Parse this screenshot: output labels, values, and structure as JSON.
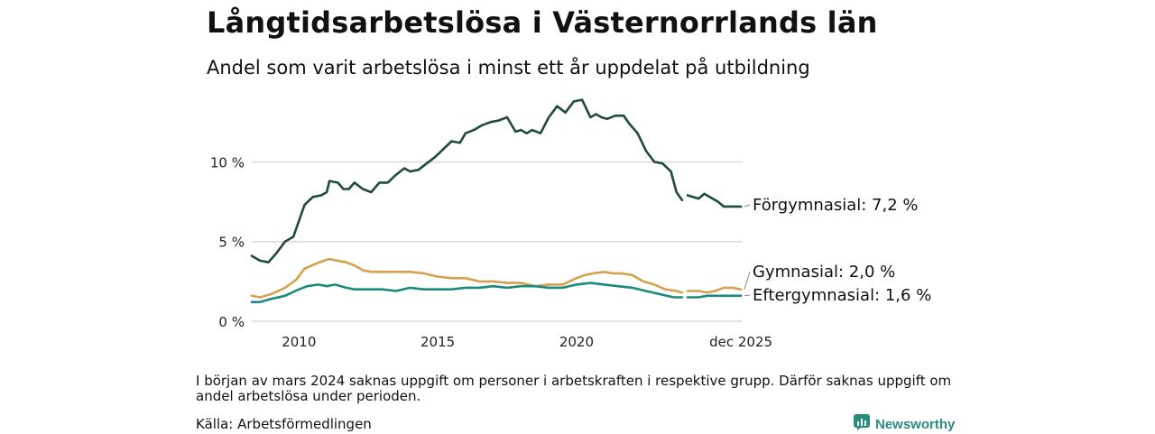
{
  "title": "Långtidsarbetslösa i Västernorrlands län",
  "subtitle": "Andel som varit arbetslösa i minst ett år uppdelat på utbildning",
  "note": "I början av mars 2024 saknas uppgift om personer i arbetskraften i respektive grupp. Därför saknas uppgift om andel arbetslösa under perioden.",
  "source": "Källa: Arbetsförmedlingen",
  "brand": "Newsworthy",
  "colors": {
    "forgymnasial": "#1f4a40",
    "gymnasial": "#d4a14f",
    "eftergymnasial": "#1a8a7e",
    "grid": "#d9d9d9"
  },
  "chart_data": {
    "type": "line",
    "title": "Långtidsarbetslösa i Västernorrlands län",
    "xlabel": "",
    "ylabel": "",
    "xlim": [
      2008.3,
      2025.95
    ],
    "ylim": [
      0,
      14.5
    ],
    "yticks": [
      0,
      5,
      10
    ],
    "ytick_labels": [
      "0 %",
      "5 %",
      "10 %"
    ],
    "xticks": [
      2010,
      2015,
      2020,
      2025.92
    ],
    "xtick_labels": [
      "2010",
      "2015",
      "2020",
      "dec 2025"
    ],
    "gap": [
      2024.0,
      2024.4
    ],
    "series": [
      {
        "name": "Förgymnasial",
        "label": "Förgymnasial: 7,2 %",
        "color": "#1f4a40",
        "x": [
          2008.3,
          2008.6,
          2008.9,
          2009.2,
          2009.5,
          2009.8,
          2010.0,
          2010.2,
          2010.5,
          2010.8,
          2011.0,
          2011.1,
          2011.4,
          2011.6,
          2011.8,
          2012.0,
          2012.3,
          2012.6,
          2012.9,
          2013.2,
          2013.5,
          2013.8,
          2014.0,
          2014.3,
          2014.6,
          2014.9,
          2015.2,
          2015.5,
          2015.8,
          2016.0,
          2016.3,
          2016.6,
          2016.9,
          2017.2,
          2017.5,
          2017.8,
          2018.0,
          2018.2,
          2018.4,
          2018.7,
          2019.0,
          2019.3,
          2019.6,
          2019.9,
          2020.2,
          2020.5,
          2020.7,
          2020.9,
          2021.1,
          2021.4,
          2021.7,
          2021.9,
          2022.2,
          2022.5,
          2022.8,
          2023.1,
          2023.4,
          2023.6,
          2023.8,
          2024.0,
          2024.4,
          2024.6,
          2024.9,
          2025.1,
          2025.3,
          2025.5,
          2025.7,
          2025.92
        ],
        "values": [
          4.1,
          3.8,
          3.7,
          4.3,
          5.0,
          5.3,
          6.3,
          7.3,
          7.8,
          7.9,
          8.1,
          8.8,
          8.7,
          8.3,
          8.3,
          8.7,
          8.3,
          8.1,
          8.7,
          8.7,
          9.2,
          9.6,
          9.4,
          9.5,
          9.9,
          10.3,
          10.8,
          11.3,
          11.2,
          11.8,
          12.0,
          12.3,
          12.5,
          12.6,
          12.8,
          11.9,
          12.0,
          11.8,
          12.0,
          11.8,
          12.8,
          13.5,
          13.1,
          13.8,
          13.9,
          12.8,
          13.0,
          12.8,
          12.7,
          12.9,
          12.9,
          12.4,
          11.8,
          10.7,
          10.0,
          9.9,
          9.4,
          8.1,
          7.6,
          7.9,
          7.7,
          8.0,
          7.7,
          7.5,
          7.2,
          7.2,
          7.2,
          7.2
        ],
        "segment_break_after": 2023.8
      },
      {
        "name": "Gymnasial",
        "label": "Gymnasial: 2,0 %",
        "color": "#d4a14f",
        "x": [
          2008.3,
          2008.6,
          2009.0,
          2009.5,
          2009.9,
          2010.2,
          2010.6,
          2010.9,
          2011.1,
          2011.4,
          2011.7,
          2012.0,
          2012.3,
          2012.6,
          2013.0,
          2013.5,
          2014.0,
          2014.5,
          2015.0,
          2015.5,
          2016.0,
          2016.5,
          2017.0,
          2017.5,
          2018.0,
          2018.5,
          2019.0,
          2019.5,
          2020.0,
          2020.3,
          2020.6,
          2021.0,
          2021.3,
          2021.6,
          2022.0,
          2022.4,
          2022.8,
          2023.2,
          2023.6,
          2023.8,
          2024.0,
          2024.4,
          2024.7,
          2025.0,
          2025.3,
          2025.6,
          2025.92
        ],
        "values": [
          1.6,
          1.5,
          1.7,
          2.1,
          2.6,
          3.3,
          3.6,
          3.8,
          3.9,
          3.8,
          3.7,
          3.5,
          3.2,
          3.1,
          3.1,
          3.1,
          3.1,
          3.0,
          2.8,
          2.7,
          2.7,
          2.5,
          2.5,
          2.4,
          2.4,
          2.2,
          2.3,
          2.3,
          2.7,
          2.9,
          3.0,
          3.1,
          3.0,
          3.0,
          2.9,
          2.5,
          2.3,
          2.0,
          1.9,
          1.8,
          1.9,
          1.9,
          1.8,
          1.9,
          2.1,
          2.1,
          2.0
        ],
        "segment_break_after": 2023.8
      },
      {
        "name": "Eftergymnasial",
        "label": "Eftergymnasial: 1,6 %",
        "color": "#1a8a7e",
        "x": [
          2008.3,
          2008.6,
          2009.0,
          2009.5,
          2010.0,
          2010.3,
          2010.7,
          2011.0,
          2011.3,
          2011.7,
          2012.0,
          2012.5,
          2013.0,
          2013.5,
          2014.0,
          2014.5,
          2015.0,
          2015.5,
          2016.0,
          2016.5,
          2017.0,
          2017.5,
          2018.0,
          2018.5,
          2019.0,
          2019.5,
          2020.0,
          2020.5,
          2021.0,
          2021.5,
          2022.0,
          2022.5,
          2023.0,
          2023.5,
          2023.8,
          2024.0,
          2024.4,
          2024.7,
          2025.0,
          2025.3,
          2025.6,
          2025.92
        ],
        "values": [
          1.2,
          1.2,
          1.4,
          1.6,
          2.0,
          2.2,
          2.3,
          2.2,
          2.3,
          2.1,
          2.0,
          2.0,
          2.0,
          1.9,
          2.1,
          2.0,
          2.0,
          2.0,
          2.1,
          2.1,
          2.2,
          2.1,
          2.2,
          2.2,
          2.1,
          2.1,
          2.3,
          2.4,
          2.3,
          2.2,
          2.1,
          1.9,
          1.7,
          1.5,
          1.5,
          1.5,
          1.5,
          1.6,
          1.6,
          1.6,
          1.6,
          1.6
        ],
        "segment_break_after": 2023.8
      }
    ]
  }
}
